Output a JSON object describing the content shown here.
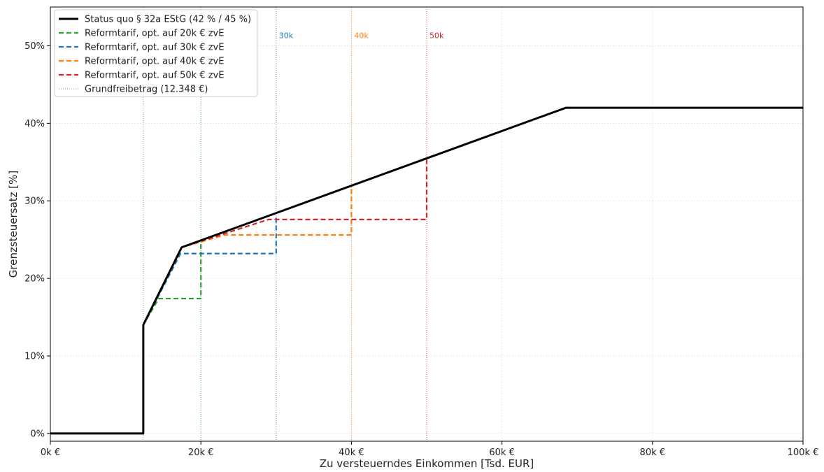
{
  "chart_data": {
    "type": "line",
    "xlabel": "Zu versteuerndes Einkommen [Tsd. EUR]",
    "ylabel": "Grenzsteuersatz  [%]",
    "xlim": [
      0,
      100
    ],
    "ylim": [
      -1,
      55
    ],
    "x_ticks": [
      0,
      20,
      40,
      60,
      80,
      100
    ],
    "x_tick_labels": [
      "0k €",
      "20k €",
      "40k €",
      "60k €",
      "80k €",
      "100k €"
    ],
    "y_ticks": [
      0,
      10,
      20,
      30,
      40,
      50
    ],
    "y_tick_labels": [
      "0%",
      "10%",
      "20%",
      "30%",
      "40%",
      "50%"
    ],
    "grid": true,
    "legend_position": "top-left",
    "series": [
      {
        "name": "Status quo § 32a EStG (42 % / 45 %)",
        "color": "#000000",
        "dash": "solid",
        "x": [
          0,
          12.348,
          12.348,
          17.443,
          68.48,
          100
        ],
        "y": [
          0,
          0,
          14,
          24,
          42,
          42
        ]
      },
      {
        "name": "Reformtarif, opt. auf 20k € zvE",
        "color": "#2ca02c",
        "dash": "dashed",
        "x": [
          12.348,
          12.348,
          14.4,
          20,
          20
        ],
        "y": [
          0,
          14,
          17.4,
          17.4,
          24.6
        ]
      },
      {
        "name": "Reformtarif, opt. auf 30k € zvE",
        "color": "#1f77b4",
        "dash": "dashed",
        "x": [
          12.348,
          12.348,
          17.3,
          30,
          30
        ],
        "y": [
          0,
          14,
          23.2,
          23.2,
          28.2
        ]
      },
      {
        "name": "Reformtarif, opt. auf 40k € zvE",
        "color": "#ff7f0e",
        "dash": "dashed",
        "x": [
          12.348,
          12.348,
          17.443,
          23.2,
          40,
          40
        ],
        "y": [
          0,
          14,
          24,
          25.6,
          25.6,
          31.8
        ]
      },
      {
        "name": "Reformtarif, opt. auf 50k € zvE",
        "color": "#d62728",
        "dash": "dashed",
        "x": [
          12.348,
          12.348,
          17.443,
          29,
          50,
          50
        ],
        "y": [
          0,
          14,
          24,
          27.6,
          27.6,
          35.3
        ]
      }
    ],
    "vlines": [
      {
        "x": 12.348,
        "color": "#888888",
        "label": "",
        "legend": "Grundfreibetrag (12.348 €)"
      },
      {
        "x": 20,
        "color": "#2ca02c",
        "label": "",
        "legend": ""
      },
      {
        "x": 30,
        "color": "#1f77b4",
        "label": "30k",
        "legend": ""
      },
      {
        "x": 40,
        "color": "#ff7f0e",
        "label": "40k",
        "legend": ""
      },
      {
        "x": 50,
        "color": "#d62728",
        "label": "50k",
        "legend": ""
      }
    ]
  }
}
